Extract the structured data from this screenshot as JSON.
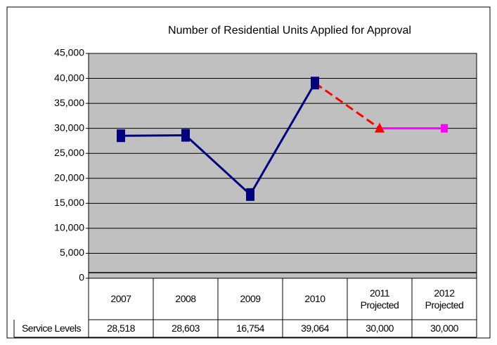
{
  "chart_data": {
    "type": "line",
    "title": "Number of Residential Units Applied for Approval",
    "categories": [
      "2007",
      "2008",
      "2009",
      "2010",
      "2011\nProjected",
      "2012\nProjected"
    ],
    "series": [
      {
        "name": "Service Levels",
        "color": "#00007f",
        "values": [
          28518,
          28603,
          16754,
          39064,
          30000,
          30000
        ],
        "value_labels": [
          "28,518",
          "28,603",
          "16,754",
          "39,064",
          "30,000",
          "30,000"
        ],
        "point_colors": [
          "#00007f",
          "#00007f",
          "#00007f",
          "#00007f",
          "#ff0000",
          "#ff00ff"
        ],
        "point_markers": [
          "square",
          "square",
          "square",
          "square",
          "triangle",
          "square"
        ],
        "segment_styles": [
          "solid",
          "solid",
          "solid",
          "dashed",
          "solid"
        ]
      }
    ],
    "ylim": [
      0,
      45000
    ],
    "yticks": [
      {
        "value": 0,
        "label": "0"
      },
      {
        "value": 5000,
        "label": "5,000"
      },
      {
        "value": 10000,
        "label": "10,000"
      },
      {
        "value": 15000,
        "label": "15,000"
      },
      {
        "value": 20000,
        "label": "20,000"
      },
      {
        "value": 25000,
        "label": "25,000"
      },
      {
        "value": 30000,
        "label": "30,000"
      },
      {
        "value": 35000,
        "label": "35,000"
      },
      {
        "value": 40000,
        "label": "40,000"
      },
      {
        "value": 45000,
        "label": "45,000"
      }
    ],
    "grid": true,
    "plot_background": "#c0c0c0"
  }
}
